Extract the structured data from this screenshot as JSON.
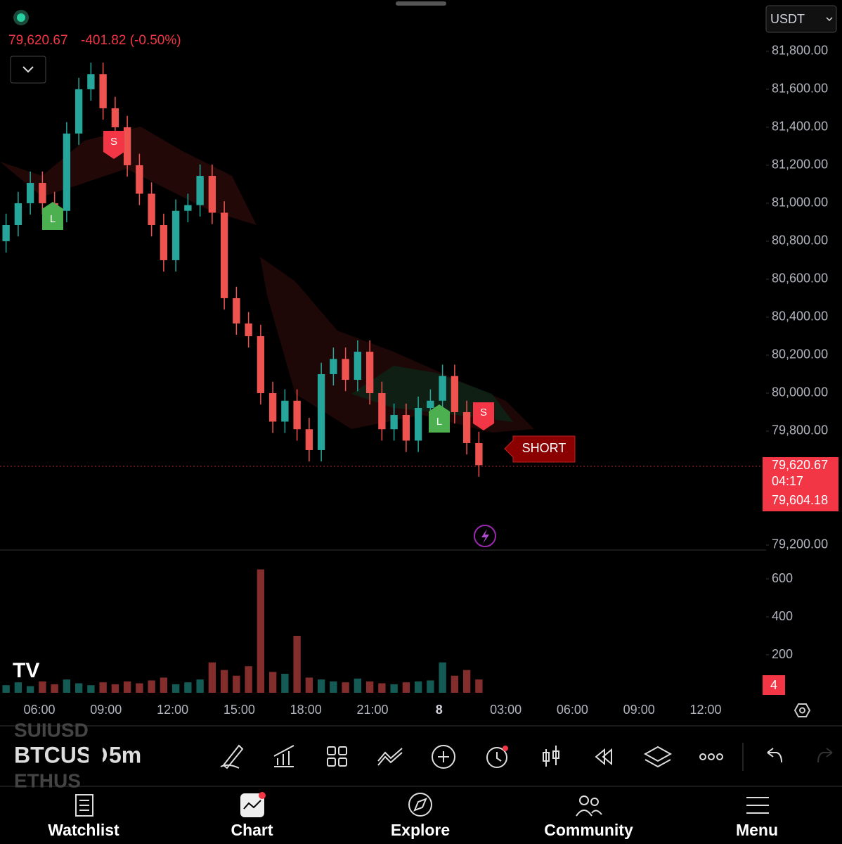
{
  "header": {
    "price": "79,620.67",
    "change": "-401.82 (-0.50%)",
    "currency": "USDT"
  },
  "chart_data": {
    "type": "candlestick",
    "ylim": [
      79174,
      82070
    ],
    "yticks": [
      {
        "value": 81800,
        "label": "81,800.00"
      },
      {
        "value": 81600,
        "label": "81,600.00"
      },
      {
        "value": 81400,
        "label": "81,400.00"
      },
      {
        "value": 81200,
        "label": "81,200.00"
      },
      {
        "value": 81000,
        "label": "81,000.00"
      },
      {
        "value": 80800,
        "label": "80,800.00"
      },
      {
        "value": 80600,
        "label": "80,600.00"
      },
      {
        "value": 80400,
        "label": "80,400.00"
      },
      {
        "value": 80200,
        "label": "80,200.00"
      },
      {
        "value": 80000,
        "label": "80,000.00"
      },
      {
        "value": 79800,
        "label": "79,800.00"
      },
      {
        "value": 79200,
        "label": "79,200.00"
      }
    ],
    "xticks": [
      "06:00",
      "09:00",
      "12:00",
      "15:00",
      "18:00",
      "21:00",
      "8",
      "03:00",
      "06:00",
      "09:00",
      "12:00"
    ],
    "open": [
      80800,
      80885,
      81000,
      81107,
      81000,
      80960,
      81367,
      81600,
      81680,
      81500,
      81400,
      81200,
      81050,
      80885,
      80700,
      80960,
      80990,
      81144,
      80950,
      80500,
      80367,
      80300,
      80000,
      79850,
      79960,
      79810,
      79700,
      80100,
      80180,
      80070,
      80218,
      80000,
      79810,
      79885,
      79750,
      79922,
      79960,
      80090,
      79900,
      79737
    ],
    "high": [
      80945,
      81060,
      81167,
      81167,
      81060,
      81427,
      81660,
      81740,
      81740,
      81560,
      81460,
      81260,
      81110,
      80945,
      81020,
      81050,
      81204,
      81204,
      81010,
      80560,
      80427,
      80360,
      80060,
      80020,
      80020,
      79870,
      80160,
      80240,
      80240,
      80278,
      80278,
      80060,
      79945,
      79945,
      79982,
      80020,
      80150,
      80150,
      79960,
      79797
    ],
    "low": [
      80740,
      80825,
      80940,
      80940,
      80900,
      80900,
      81307,
      81540,
      81440,
      81340,
      81140,
      80990,
      80825,
      80640,
      80640,
      80900,
      80930,
      80890,
      80440,
      80307,
      80240,
      79940,
      79790,
      79790,
      79750,
      79640,
      79640,
      80040,
      80010,
      80010,
      79940,
      79750,
      79750,
      79690,
      79690,
      79862,
      79900,
      79840,
      79677,
      79560
    ],
    "close": [
      80885,
      81000,
      81107,
      81000,
      80960,
      81367,
      81600,
      81680,
      81500,
      81400,
      81200,
      81050,
      80885,
      80700,
      80960,
      80990,
      81144,
      80950,
      80500,
      80367,
      80300,
      80000,
      79850,
      79960,
      79810,
      79700,
      80100,
      80180,
      80070,
      80218,
      80000,
      79810,
      79885,
      79750,
      79922,
      79960,
      80090,
      79900,
      79737,
      79620.67
    ],
    "volume": [
      40,
      55,
      35,
      60,
      45,
      70,
      50,
      40,
      55,
      45,
      60,
      50,
      65,
      80,
      45,
      55,
      70,
      160,
      120,
      90,
      140,
      650,
      110,
      100,
      300,
      80,
      70,
      60,
      55,
      75,
      60,
      50,
      45,
      55,
      60,
      65,
      160,
      90,
      120,
      70
    ],
    "volume_ylim": [
      0,
      752
    ],
    "volume_yticks": [
      600,
      400,
      200
    ],
    "volume_badge": "4",
    "signals": [
      "L",
      "S",
      "L",
      "S"
    ],
    "signal_label": "SHORT",
    "last_price": "79,620.67",
    "countdown": "04:17",
    "bid_price": "79,604.18"
  },
  "toolbar": {
    "symbol": "BTCUSD",
    "interval": "5m"
  },
  "nav": [
    "Watchlist",
    "Chart",
    "Explore",
    "Community",
    "Menu"
  ]
}
